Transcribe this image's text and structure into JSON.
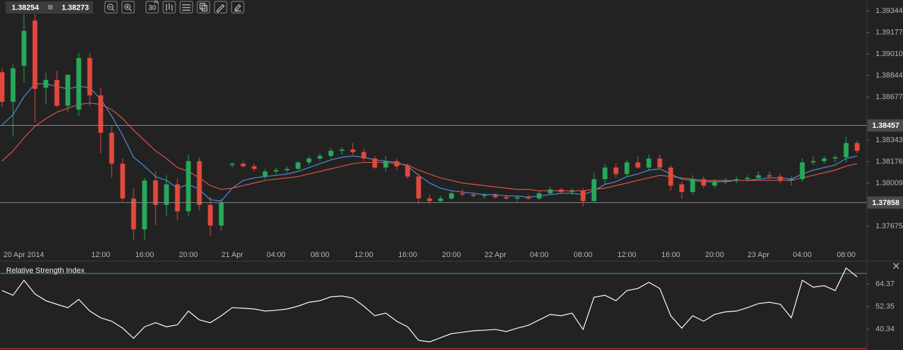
{
  "toolbar": {
    "bid": "1.38254",
    "ask": "1.38273",
    "timeframe": "30",
    "timeframe_unit": "m"
  },
  "chart_data": [
    {
      "type": "candlestick",
      "categories": [
        "20 Apr 2014",
        null,
        null,
        null,
        null,
        null,
        null,
        null,
        null,
        "12:00",
        null,
        null,
        null,
        "16:00",
        null,
        null,
        null,
        "20:00",
        null,
        null,
        null,
        "21 Apr",
        null,
        null,
        null,
        "04:00",
        null,
        null,
        null,
        "08:00",
        null,
        null,
        null,
        "12:00",
        null,
        null,
        null,
        "16:00",
        null,
        null,
        null,
        "20:00",
        null,
        null,
        null,
        "22 Apr",
        null,
        null,
        null,
        "04:00",
        null,
        null,
        null,
        "08:00",
        null,
        null,
        null,
        "12:00",
        null,
        null,
        null,
        "16:00",
        null,
        null,
        null,
        "20:00",
        null,
        null,
        null,
        "23 Apr",
        null,
        null,
        null,
        "04:00",
        null,
        null,
        null,
        "08:00",
        null
      ],
      "open": [
        1.3887,
        1.3864,
        1.3892,
        1.3927,
        1.3875,
        1.3881,
        1.3861,
        1.3858,
        1.3898,
        1.3869,
        1.384,
        1.3816,
        1.3789,
        1.3765,
        1.3803,
        1.3784,
        1.38,
        1.3779,
        1.3818,
        1.3784,
        1.3768,
        1.3815,
        1.3816,
        1.3814,
        1.3806,
        1.381,
        1.3811,
        1.3812,
        1.3817,
        1.382,
        1.3822,
        1.3826,
        1.3827,
        1.3825,
        1.382,
        1.3813,
        1.3818,
        1.3814,
        1.3806,
        1.3789,
        1.3787,
        1.3789,
        1.3793,
        1.3792,
        1.3791,
        1.3792,
        1.379,
        1.3789,
        1.379,
        1.3789,
        1.3793,
        1.3796,
        1.3794,
        1.3795,
        1.3787,
        1.3804,
        1.3813,
        1.3808,
        1.3817,
        1.3813,
        1.382,
        1.3813,
        1.38,
        1.3794,
        1.3804,
        1.3799,
        1.3802,
        1.3803,
        1.3804,
        1.3805,
        1.3807,
        1.3806,
        1.3803,
        1.3804,
        1.3817,
        1.3818,
        1.382,
        1.3821,
        1.3832
      ],
      "high": [
        1.389,
        1.3893,
        1.3932,
        1.3932,
        1.3887,
        1.3888,
        1.3885,
        1.3902,
        1.3902,
        1.3875,
        1.3845,
        1.382,
        1.3797,
        1.3805,
        1.381,
        1.3807,
        1.3805,
        1.3823,
        1.3821,
        1.379,
        1.3789,
        1.3817,
        1.3818,
        1.3816,
        1.3812,
        1.3813,
        1.3814,
        1.3818,
        1.3822,
        1.3824,
        1.3828,
        1.3829,
        1.3832,
        1.3828,
        1.3822,
        1.3822,
        1.382,
        1.3816,
        1.3808,
        1.3792,
        1.3791,
        1.3795,
        1.3796,
        1.3794,
        1.3793,
        1.3793,
        1.3792,
        1.3791,
        1.3792,
        1.3795,
        1.3798,
        1.3797,
        1.3797,
        1.3797,
        1.3809,
        1.3816,
        1.3816,
        1.3819,
        1.3822,
        1.3823,
        1.3823,
        1.3815,
        1.3802,
        1.3807,
        1.3806,
        1.3804,
        1.3805,
        1.3806,
        1.3807,
        1.381,
        1.381,
        1.3808,
        1.3806,
        1.382,
        1.3822,
        1.3822,
        1.3823,
        1.3837,
        1.3834
      ],
      "low": [
        1.386,
        1.3837,
        1.3879,
        1.3848,
        1.3862,
        1.386,
        1.3856,
        1.3853,
        1.3861,
        1.3824,
        1.3805,
        1.3787,
        1.3757,
        1.3757,
        1.3768,
        1.3775,
        1.3772,
        1.3775,
        1.378,
        1.376,
        1.3764,
        1.3813,
        1.3813,
        1.381,
        1.3804,
        1.3808,
        1.3809,
        1.3811,
        1.3815,
        1.3818,
        1.382,
        1.3823,
        1.3823,
        1.3818,
        1.3812,
        1.381,
        1.3811,
        1.3804,
        1.3785,
        1.3785,
        1.3786,
        1.3788,
        1.3791,
        1.379,
        1.3789,
        1.3789,
        1.3788,
        1.3787,
        1.3788,
        1.3788,
        1.3792,
        1.3793,
        1.3792,
        1.3783,
        1.3786,
        1.38,
        1.3805,
        1.3806,
        1.3812,
        1.3811,
        1.3812,
        1.3795,
        1.3789,
        1.3792,
        1.3797,
        1.3797,
        1.38,
        1.3801,
        1.3802,
        1.3803,
        1.3804,
        1.3801,
        1.3799,
        1.3802,
        1.3815,
        1.3816,
        1.3817,
        1.3817,
        1.3824
      ],
      "close": [
        1.3864,
        1.389,
        1.3919,
        1.3874,
        1.3881,
        1.3861,
        1.3885,
        1.3898,
        1.3869,
        1.384,
        1.3816,
        1.3789,
        1.3765,
        1.3803,
        1.3784,
        1.38,
        1.3779,
        1.3818,
        1.3784,
        1.3768,
        1.3786,
        1.3816,
        1.3814,
        1.3812,
        1.381,
        1.3811,
        1.3812,
        1.3817,
        1.382,
        1.3822,
        1.3826,
        1.3827,
        1.3825,
        1.382,
        1.3813,
        1.3818,
        1.3814,
        1.3806,
        1.3789,
        1.3787,
        1.3789,
        1.3793,
        1.3792,
        1.3791,
        1.3792,
        1.379,
        1.3789,
        1.379,
        1.3789,
        1.3793,
        1.3796,
        1.3794,
        1.3795,
        1.3787,
        1.3804,
        1.3813,
        1.3808,
        1.3817,
        1.3813,
        1.382,
        1.3813,
        1.3799,
        1.3794,
        1.3804,
        1.3799,
        1.3802,
        1.3803,
        1.3804,
        1.3805,
        1.3807,
        1.3806,
        1.3803,
        1.3804,
        1.3817,
        1.3818,
        1.382,
        1.3821,
        1.3832,
        1.3826
      ],
      "up_color": "#27a85a",
      "down_color": "#e2493c",
      "series": [
        {
          "color": "#4f8fd8",
          "values": [
            1.3846,
            1.3854,
            1.3868,
            1.3878,
            1.3878,
            1.3876,
            1.3874,
            1.3876,
            1.3875,
            1.3866,
            1.3853,
            1.3838,
            1.3821,
            1.3814,
            1.3806,
            1.3803,
            1.3797,
            1.38,
            1.3796,
            1.3788,
            1.3787,
            1.3797,
            1.3803,
            1.3805,
            1.3806,
            1.3807,
            1.3808,
            1.381,
            1.3813,
            1.3816,
            1.3819,
            1.3821,
            1.3822,
            1.3821,
            1.3819,
            1.3818,
            1.3817,
            1.3814,
            1.3807,
            1.3801,
            1.3797,
            1.3795,
            1.3794,
            1.3793,
            1.3792,
            1.3792,
            1.3791,
            1.3791,
            1.379,
            1.3791,
            1.3792,
            1.3793,
            1.3793,
            1.3792,
            1.3795,
            1.38,
            1.3802,
            1.3806,
            1.3808,
            1.3811,
            1.3812,
            1.3808,
            1.3804,
            1.3803,
            1.3802,
            1.3802,
            1.3802,
            1.3803,
            1.3803,
            1.3804,
            1.3805,
            1.3805,
            1.3804,
            1.3808,
            1.3811,
            1.3813,
            1.3815,
            1.382,
            1.3822
          ]
        },
        {
          "color": "#e0534a",
          "values": [
            1.3818,
            1.3826,
            1.3836,
            1.3845,
            1.3851,
            1.3856,
            1.3859,
            1.3862,
            1.3863,
            1.3862,
            1.3858,
            1.3851,
            1.3842,
            1.3834,
            1.3826,
            1.382,
            1.3813,
            1.381,
            1.3805,
            1.3799,
            1.3796,
            1.3797,
            1.3799,
            1.3801,
            1.3803,
            1.3804,
            1.3805,
            1.3806,
            1.3808,
            1.381,
            1.3812,
            1.3814,
            1.3816,
            1.3817,
            1.3817,
            1.3817,
            1.3816,
            1.3815,
            1.3811,
            1.3808,
            1.3805,
            1.3803,
            1.3801,
            1.38,
            1.3799,
            1.3798,
            1.3797,
            1.3796,
            1.3796,
            1.3795,
            1.3795,
            1.3795,
            1.3795,
            1.3795,
            1.3796,
            1.3797,
            1.3799,
            1.3801,
            1.3803,
            1.3805,
            1.3807,
            1.3806,
            1.3805,
            1.3804,
            1.3803,
            1.3803,
            1.3803,
            1.3803,
            1.3803,
            1.3803,
            1.3803,
            1.3803,
            1.3803,
            1.3805,
            1.3807,
            1.3809,
            1.3811,
            1.3814,
            1.3816
          ]
        }
      ],
      "price_lines": [
        1.38457,
        1.37858
      ],
      "ylim": [
        1.3751,
        1.3943
      ],
      "yticks": [
        1.39344,
        1.39177,
        {
          "value": 1.3901,
          "label": "1.39010"
        },
        1.38844,
        1.38677,
        1.38343,
        1.38176,
        1.38009,
        1.37675
      ]
    },
    {
      "type": "line",
      "title": "Relative Strength Index",
      "color": "#ffffff",
      "values": [
        60.9,
        58.4,
        66.4,
        59.1,
        55.5,
        53.6,
        51.8,
        56.2,
        50.0,
        46.4,
        44.6,
        40.9,
        35.5,
        41.6,
        43.8,
        41.6,
        42.7,
        50.0,
        45.3,
        43.8,
        47.5,
        51.8,
        51.5,
        51.1,
        50.0,
        50.4,
        51.1,
        52.6,
        54.7,
        55.5,
        57.6,
        58.0,
        56.9,
        52.6,
        47.5,
        48.9,
        44.6,
        41.6,
        34.4,
        33.6,
        35.8,
        38.0,
        38.7,
        39.5,
        39.8,
        40.2,
        39.1,
        40.9,
        42.4,
        45.3,
        48.2,
        47.5,
        48.9,
        40.2,
        57.3,
        58.4,
        55.5,
        60.9,
        62.0,
        65.3,
        62.0,
        47.5,
        40.9,
        47.5,
        44.6,
        48.2,
        49.6,
        50.0,
        51.8,
        54.0,
        54.7,
        53.6,
        46.4,
        66.4,
        62.7,
        63.5,
        60.9,
        72.9,
        68.2
      ],
      "levels": [
        70,
        30
      ],
      "level_colors": [
        "#4caf50",
        "#e53935"
      ],
      "ylim": [
        30,
        76.2
      ],
      "yticks": [
        64.37,
        52.35,
        40.34
      ]
    }
  ]
}
